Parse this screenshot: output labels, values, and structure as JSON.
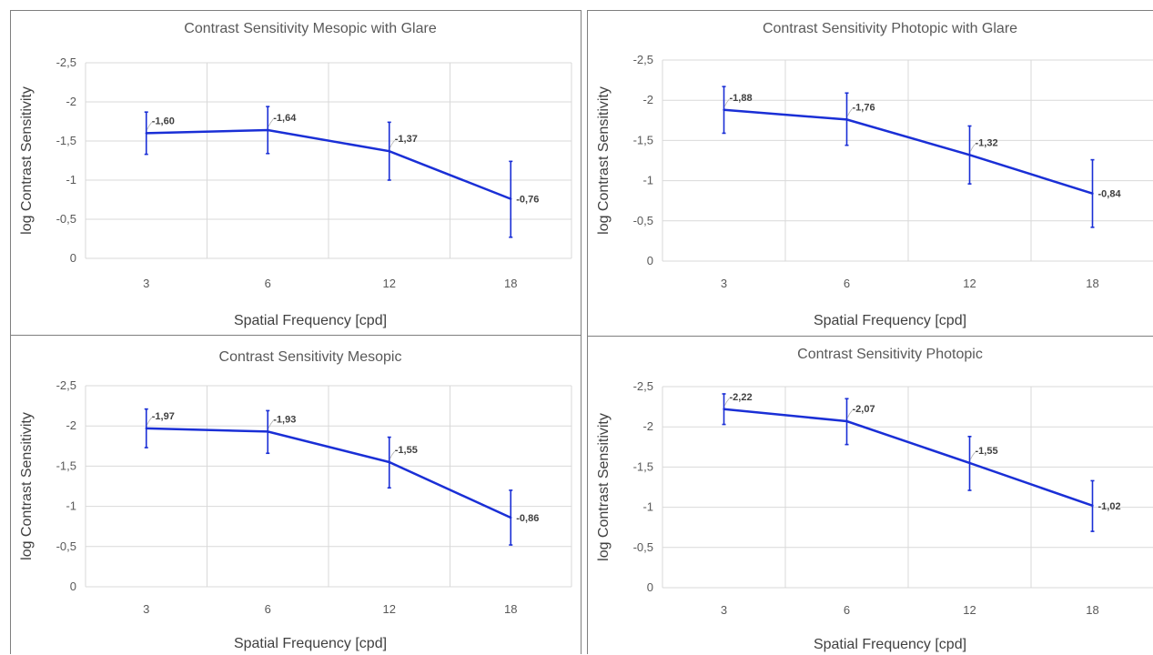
{
  "chart_data": [
    {
      "type": "line",
      "title": "Contrast Sensitivity Mesopic with Glare",
      "xlabel": "Spatial Frequency [cpd]",
      "ylabel": "log Contrast Sensitivity",
      "categories": [
        "3",
        "6",
        "12",
        "18"
      ],
      "yticks": [
        "-2,5",
        "-2",
        "-1,5",
        "-1",
        "-0,5",
        "0"
      ],
      "ylim": [
        0,
        -2.5
      ],
      "grid": true,
      "series": [
        {
          "values": [
            -1.6,
            -1.64,
            -1.37,
            -0.76
          ],
          "labels": [
            "-1,60",
            "-1,64",
            "-1,37",
            "-0,76"
          ],
          "error_low": [
            -1.33,
            -1.34,
            -1.0,
            -0.27
          ],
          "error_high": [
            -1.87,
            -1.94,
            -1.74,
            -1.24
          ]
        }
      ],
      "color": "#1a2fd6"
    },
    {
      "type": "line",
      "title": "Contrast Sensitivity Photopic with Glare",
      "xlabel": "Spatial Frequency [cpd]",
      "ylabel": "log Contrast Sensitivity",
      "categories": [
        "3",
        "6",
        "12",
        "18"
      ],
      "yticks": [
        "-2,5",
        "-2",
        "-1,5",
        "-1",
        "-0,5",
        "0"
      ],
      "ylim": [
        0,
        -2.5
      ],
      "grid": true,
      "series": [
        {
          "values": [
            -1.88,
            -1.76,
            -1.32,
            -0.84
          ],
          "labels": [
            "-1,88",
            "-1,76",
            "-1,32",
            "-0,84"
          ],
          "error_low": [
            -1.59,
            -1.44,
            -0.96,
            -0.42
          ],
          "error_high": [
            -2.17,
            -2.09,
            -1.68,
            -1.26
          ]
        }
      ],
      "color": "#1a2fd6"
    },
    {
      "type": "line",
      "title": "Contrast Sensitivity Mesopic",
      "xlabel": "Spatial Frequency [cpd]",
      "ylabel": "log Contrast Sensitivity",
      "categories": [
        "3",
        "6",
        "12",
        "18"
      ],
      "yticks": [
        "-2,5",
        "-2",
        "-1,5",
        "-1",
        "-0,5",
        "0"
      ],
      "ylim": [
        0,
        -2.5
      ],
      "grid": true,
      "series": [
        {
          "values": [
            -1.97,
            -1.93,
            -1.55,
            -0.86
          ],
          "labels": [
            "-1,97",
            "-1,93",
            "-1,55",
            "-0,86"
          ],
          "error_low": [
            -1.73,
            -1.66,
            -1.23,
            -0.52
          ],
          "error_high": [
            -2.21,
            -2.19,
            -1.86,
            -1.2
          ]
        }
      ],
      "color": "#1a2fd6"
    },
    {
      "type": "line",
      "title": "Contrast Sensitivity Photopic",
      "xlabel": "Spatial Frequency [cpd]",
      "ylabel": "log Contrast Sensitivity",
      "categories": [
        "3",
        "6",
        "12",
        "18"
      ],
      "yticks": [
        "-2,5",
        "-2",
        "-1,5",
        "-1",
        "-0,5",
        "0"
      ],
      "ylim": [
        0,
        -2.5
      ],
      "grid": true,
      "series": [
        {
          "values": [
            -2.22,
            -2.07,
            -1.55,
            -1.02
          ],
          "labels": [
            "-2,22",
            "-2,07",
            "-1,55",
            "-1,02"
          ],
          "error_low": [
            -2.03,
            -1.78,
            -1.21,
            -0.7
          ],
          "error_high": [
            -2.41,
            -2.35,
            -1.88,
            -1.33
          ]
        }
      ],
      "color": "#1a2fd6"
    }
  ]
}
